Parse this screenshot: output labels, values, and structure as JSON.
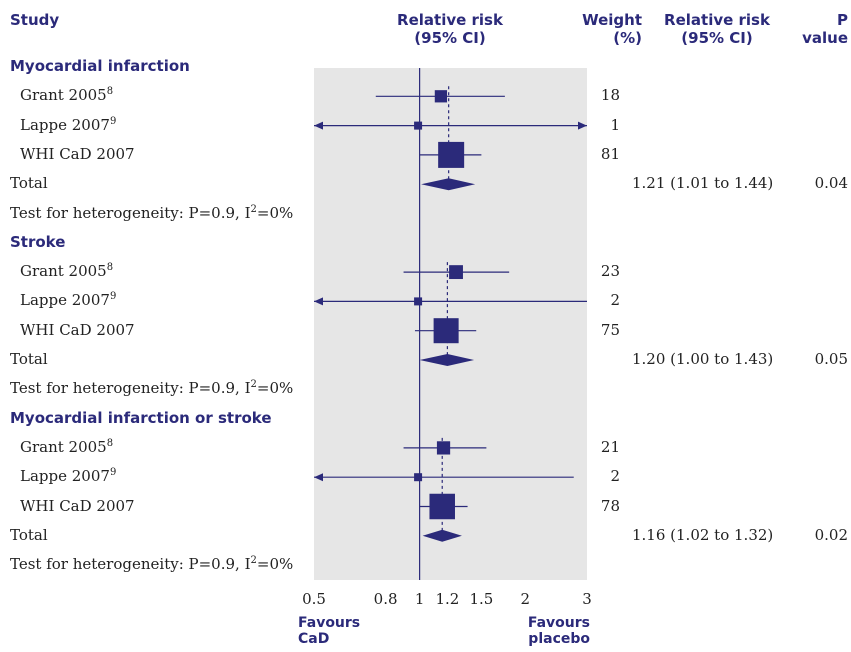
{
  "headers": {
    "study": "Study",
    "rr_plot_line1": "Relative risk",
    "rr_plot_line2": "(95% CI)",
    "weight_line1": "Weight",
    "weight_line2": "(%)",
    "rr_text_line1": "Relative risk",
    "rr_text_line2": "(95% CI)",
    "p_line1": "P",
    "p_line2": "value"
  },
  "footer": {
    "left_line1": "Favours",
    "left_line2": "CaD",
    "right_line1": "Favours",
    "right_line2": "placebo"
  },
  "colors": {
    "accent": "#2b2a7a",
    "panel": "#e6e6e6",
    "text": "#222222"
  },
  "chart_data": {
    "type": "forest",
    "x_scale": "log",
    "xlim": [
      0.5,
      3
    ],
    "reference_line": 1,
    "x_ticks": [
      0.5,
      0.8,
      1,
      1.2,
      1.5,
      2,
      3
    ],
    "x_tick_labels": [
      "0.5",
      "0.8",
      "1",
      "1.2",
      "1.5",
      "2",
      "3"
    ],
    "groups": [
      {
        "name": "Myocardial infarction",
        "studies": [
          {
            "label": "Grant 2005",
            "ref": "8",
            "rr": 1.15,
            "lower": 0.75,
            "upper": 1.75,
            "weight": "18",
            "arrow_left": false,
            "arrow_right": false
          },
          {
            "label": "Lappe 2007",
            "ref": "9",
            "rr": 0.99,
            "lower": 0.5,
            "upper": 3.0,
            "weight": "1",
            "arrow_left": true,
            "arrow_right": true
          },
          {
            "label": "WHI CaD 2007",
            "ref": "",
            "rr": 1.23,
            "lower": 1.0,
            "upper": 1.5,
            "weight": "81",
            "arrow_left": false,
            "arrow_right": false
          }
        ],
        "total": {
          "label": "Total",
          "rr": 1.21,
          "lower": 1.01,
          "upper": 1.44,
          "ci_text": "1.21 (1.01 to 1.44)",
          "p": "0.04"
        },
        "heterogeneity": {
          "prefix": "Test for heterogeneity: P=0.9, I",
          "sup": "2",
          "suffix": "=0%"
        }
      },
      {
        "name": "Stroke",
        "studies": [
          {
            "label": "Grant 2005",
            "ref": "8",
            "rr": 1.27,
            "lower": 0.9,
            "upper": 1.8,
            "weight": "23",
            "arrow_left": false,
            "arrow_right": false
          },
          {
            "label": "Lappe 2007",
            "ref": "9",
            "rr": 0.99,
            "lower": 0.5,
            "upper": 3.0,
            "weight": "2",
            "arrow_left": true,
            "arrow_right": false
          },
          {
            "label": "WHI CaD 2007",
            "ref": "",
            "rr": 1.19,
            "lower": 0.97,
            "upper": 1.45,
            "weight": "75",
            "arrow_left": false,
            "arrow_right": false
          }
        ],
        "total": {
          "label": "Total",
          "rr": 1.2,
          "lower": 1.0,
          "upper": 1.43,
          "ci_text": "1.20 (1.00 to 1.43)",
          "p": "0.05"
        },
        "heterogeneity": {
          "prefix": "Test for heterogeneity: P=0.9, I",
          "sup": "2",
          "suffix": "=0%"
        }
      },
      {
        "name": "Myocardial infarction or stroke",
        "studies": [
          {
            "label": "Grant 2005",
            "ref": "8",
            "rr": 1.17,
            "lower": 0.9,
            "upper": 1.55,
            "weight": "21",
            "arrow_left": false,
            "arrow_right": false
          },
          {
            "label": "Lappe 2007",
            "ref": "9",
            "rr": 0.99,
            "lower": 0.5,
            "upper": 2.75,
            "weight": "2",
            "arrow_left": true,
            "arrow_right": false
          },
          {
            "label": "WHI CaD 2007",
            "ref": "",
            "rr": 1.16,
            "lower": 1.0,
            "upper": 1.37,
            "weight": "78",
            "arrow_left": false,
            "arrow_right": false
          }
        ],
        "total": {
          "label": "Total",
          "rr": 1.16,
          "lower": 1.02,
          "upper": 1.32,
          "ci_text": "1.16 (1.02 to 1.32)",
          "p": "0.02"
        },
        "heterogeneity": {
          "prefix": "Test for heterogeneity: P=0.9, I",
          "sup": "2",
          "suffix": "=0%"
        }
      }
    ]
  }
}
